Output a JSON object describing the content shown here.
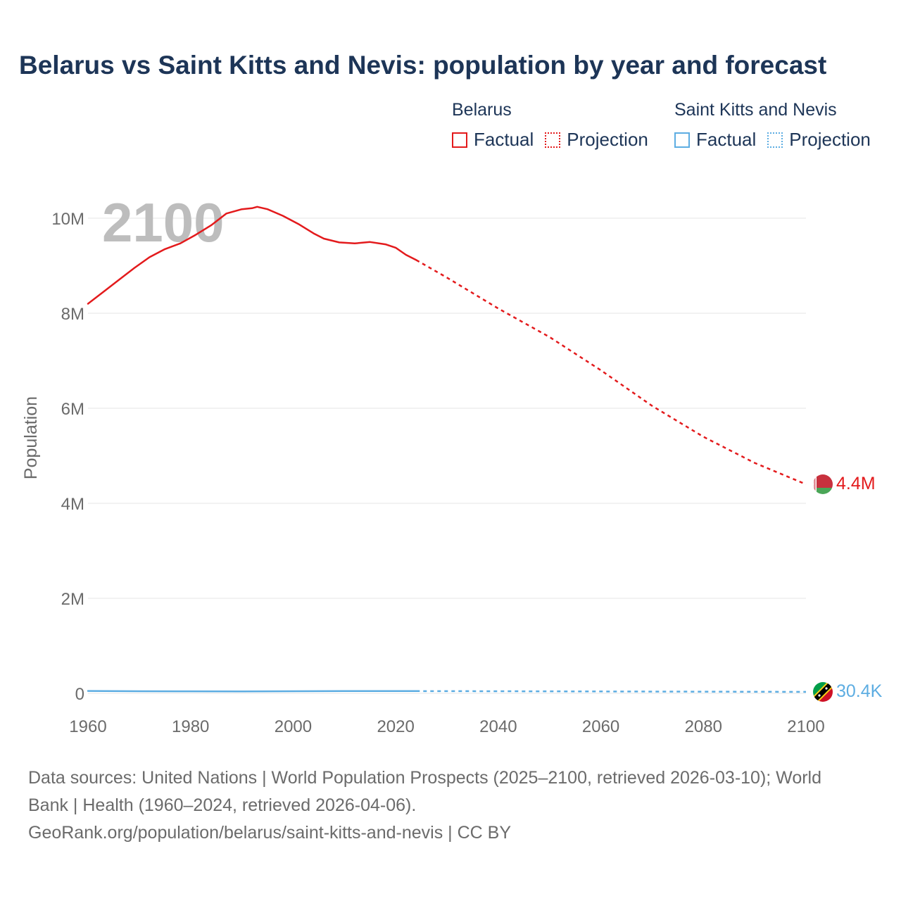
{
  "chart_data": {
    "type": "line",
    "title": "Belarus vs Saint Kitts and Nevis: population by year and forecast",
    "ylabel": "Population",
    "xlabel": "",
    "xlim": [
      1960,
      2100
    ],
    "ylim": [
      0,
      10000000
    ],
    "x_ticks": [
      1960,
      1980,
      2000,
      2020,
      2040,
      2060,
      2080,
      2100
    ],
    "x_tick_labels": [
      "1960",
      "1980",
      "2000",
      "2020",
      "2040",
      "2060",
      "2080",
      "2100"
    ],
    "y_ticks": [
      0,
      2000000,
      4000000,
      6000000,
      8000000,
      10000000
    ],
    "y_tick_labels": [
      "0",
      "2M",
      "4M",
      "6M",
      "8M",
      "10M"
    ],
    "watermark_year": "2100",
    "legend": {
      "groups": [
        {
          "name": "Belarus",
          "factual_label": "Factual",
          "projection_label": "Projection",
          "color": "#e31a1c"
        },
        {
          "name": "Saint Kitts and Nevis",
          "factual_label": "Factual",
          "projection_label": "Projection",
          "color": "#5dade2"
        }
      ]
    },
    "series": [
      {
        "name": "Belarus",
        "color": "#e31a1c",
        "end_label": "4.4M",
        "flag": "belarus-flag",
        "factual": {
          "x": [
            1960,
            1963,
            1966,
            1969,
            1972,
            1975,
            1978,
            1981,
            1984,
            1987,
            1990,
            1992,
            1993,
            1995,
            1998,
            2001,
            2004,
            2006,
            2009,
            2012,
            2015,
            2018,
            2020,
            2022,
            2024
          ],
          "y": [
            8200000,
            8450000,
            8700000,
            8950000,
            9180000,
            9350000,
            9470000,
            9650000,
            9850000,
            10100000,
            10190000,
            10210000,
            10240000,
            10190000,
            10050000,
            9880000,
            9680000,
            9570000,
            9490000,
            9470000,
            9500000,
            9450000,
            9380000,
            9230000,
            9120000
          ]
        },
        "projection": {
          "x": [
            2024,
            2030,
            2040,
            2050,
            2060,
            2070,
            2080,
            2090,
            2100
          ],
          "y": [
            9120000,
            8750000,
            8100000,
            7500000,
            6800000,
            6050000,
            5400000,
            4850000,
            4400000
          ]
        }
      },
      {
        "name": "Saint Kitts and Nevis",
        "color": "#5dade2",
        "end_label": "30.4K",
        "flag": "saint-kitts-and-nevis-flag",
        "factual": {
          "x": [
            1960,
            1970,
            1980,
            1990,
            2000,
            2010,
            2020,
            2024
          ],
          "y": [
            51000,
            44000,
            43000,
            41000,
            45000,
            47000,
            47000,
            46800
          ]
        },
        "projection": {
          "x": [
            2024,
            2040,
            2060,
            2080,
            2100
          ],
          "y": [
            46800,
            44500,
            40000,
            35000,
            30400
          ]
        }
      }
    ]
  },
  "footer": {
    "line1": "Data sources: United Nations | World Population Prospects (2025–2100, retrieved 2026-03-10); World",
    "line2": "Bank | Health (1960–2024, retrieved 2026-04-06).",
    "line3": "GeoRank.org/population/belarus/saint-kitts-and-nevis | CC BY"
  }
}
